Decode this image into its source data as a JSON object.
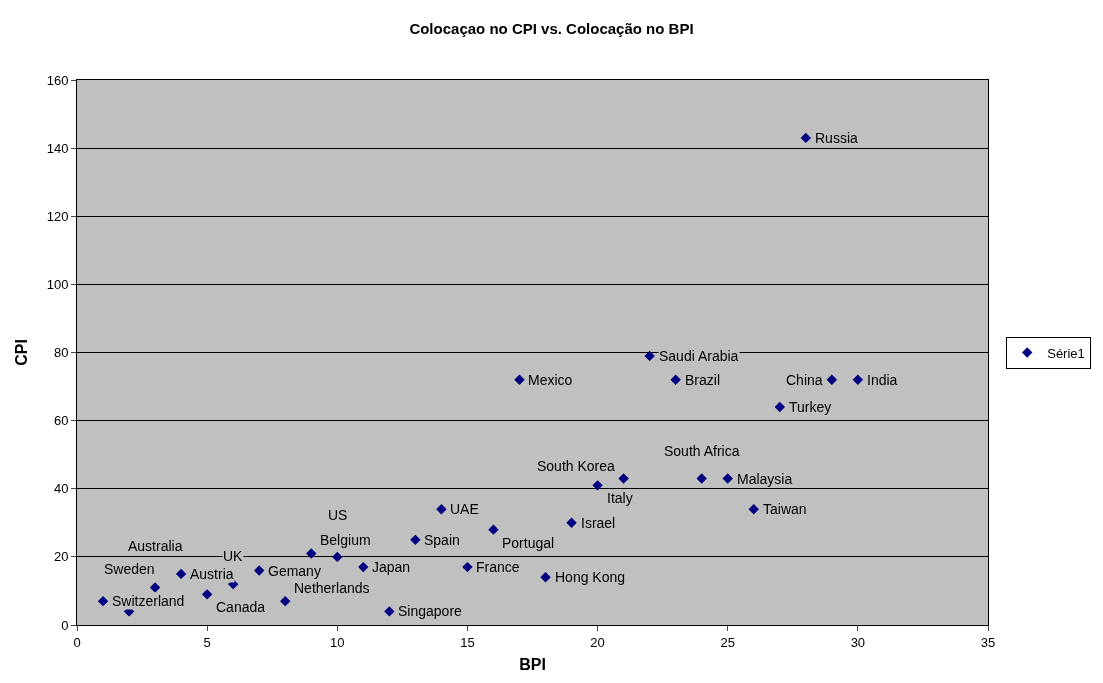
{
  "chart_data": {
    "type": "scatter",
    "title": "Colocaçao no CPI vs. Colocação no BPI",
    "xlabel": "BPI",
    "ylabel": "CPI",
    "x": [
      1,
      2,
      3,
      4,
      5,
      6,
      7,
      8,
      9,
      10,
      11,
      12,
      13,
      14,
      15,
      16,
      17,
      18,
      19,
      20,
      21,
      22,
      23,
      24,
      25,
      26,
      27,
      28,
      29,
      30
    ],
    "series": [
      {
        "name": "Série1",
        "color": "#000080",
        "values": [
          7,
          4,
          11,
          15,
          9,
          12,
          16,
          7,
          21,
          20,
          17,
          4,
          25,
          34,
          17,
          28,
          72,
          14,
          30,
          41,
          43,
          79,
          72,
          43,
          43,
          34,
          64,
          143,
          72,
          72
        ]
      }
    ],
    "annotations": [
      {
        "text": "Switzerland",
        "x": 1,
        "y": 7
      },
      {
        "text": "Sweden",
        "x": 2,
        "y": 4
      },
      {
        "text": "Australia",
        "x": 3,
        "y": 11
      },
      {
        "text": "Austria",
        "x": 4,
        "y": 15
      },
      {
        "text": "Canada",
        "x": 5,
        "y": 9
      },
      {
        "text": "UK",
        "x": 6,
        "y": 12
      },
      {
        "text": "Gemany",
        "x": 7,
        "y": 16
      },
      {
        "text": "Netherlands",
        "x": 8,
        "y": 7
      },
      {
        "text": "Belgium",
        "x": 9,
        "y": 21
      },
      {
        "text": "US",
        "x": 10,
        "y": 20
      },
      {
        "text": "Japan",
        "x": 11,
        "y": 17
      },
      {
        "text": "Singapore",
        "x": 12,
        "y": 4
      },
      {
        "text": "Spain",
        "x": 13,
        "y": 25
      },
      {
        "text": "UAE",
        "x": 14,
        "y": 34
      },
      {
        "text": "France",
        "x": 15,
        "y": 17
      },
      {
        "text": "Portugal",
        "x": 16,
        "y": 28
      },
      {
        "text": "Mexico",
        "x": 17,
        "y": 72
      },
      {
        "text": "Hong Kong",
        "x": 18,
        "y": 14
      },
      {
        "text": "Israel",
        "x": 19,
        "y": 30
      },
      {
        "text": "Italy",
        "x": 20,
        "y": 41
      },
      {
        "text": "South Korea",
        "x": 21,
        "y": 43
      },
      {
        "text": "Saudi Arabia",
        "x": 22,
        "y": 79
      },
      {
        "text": "Brazil",
        "x": 23,
        "y": 72
      },
      {
        "text": "South Africa",
        "x": 24,
        "y": 43
      },
      {
        "text": "Malaysia",
        "x": 25,
        "y": 43
      },
      {
        "text": "Taiwan",
        "x": 26,
        "y": 34
      },
      {
        "text": "Turkey",
        "x": 27,
        "y": 64
      },
      {
        "text": "Russia",
        "x": 28,
        "y": 143
      },
      {
        "text": "China",
        "x": 29,
        "y": 72
      },
      {
        "text": "India",
        "x": 30,
        "y": 72
      }
    ],
    "xlim": [
      0,
      35
    ],
    "xticks": [
      0,
      5,
      10,
      15,
      20,
      25,
      30,
      35
    ],
    "ylim": [
      0,
      160
    ],
    "yticks": [
      0,
      20,
      40,
      60,
      80,
      100,
      120,
      140,
      160
    ],
    "grid": "y",
    "legend": "right",
    "marker": "diamond"
  }
}
